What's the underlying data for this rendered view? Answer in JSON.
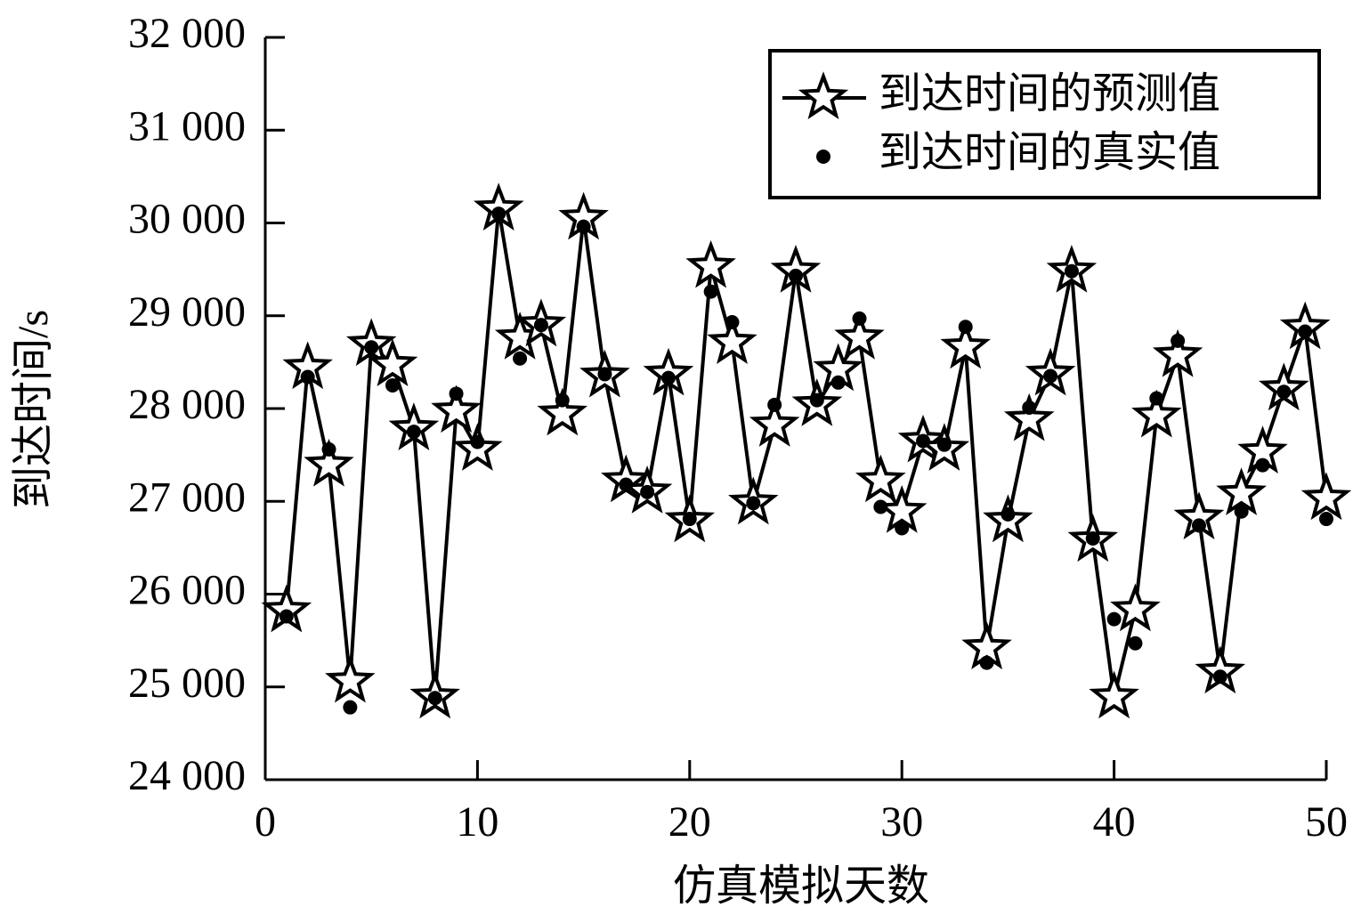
{
  "chart_data": {
    "type": "line",
    "x_label": "仿真模拟天数",
    "y_label": "到达时间/s",
    "x": [
      1,
      2,
      3,
      4,
      5,
      6,
      7,
      8,
      9,
      10,
      11,
      12,
      13,
      14,
      15,
      16,
      17,
      18,
      19,
      20,
      21,
      22,
      23,
      24,
      25,
      26,
      27,
      28,
      29,
      30,
      31,
      32,
      33,
      34,
      35,
      36,
      37,
      38,
      39,
      40,
      41,
      42,
      43,
      44,
      45,
      46,
      47,
      48,
      49,
      50
    ],
    "series": [
      {
        "name": "到达时间的预测值",
        "color": "#000000",
        "marker": "star",
        "line": true,
        "values": [
          25820,
          28440,
          27390,
          25060,
          28690,
          28470,
          27780,
          24890,
          27970,
          27560,
          30150,
          28760,
          28900,
          27940,
          30050,
          28350,
          27220,
          27100,
          28370,
          26790,
          29530,
          28710,
          26980,
          27820,
          29480,
          28040,
          28420,
          28760,
          27220,
          26890,
          27650,
          27560,
          28660,
          25420,
          26790,
          27880,
          28370,
          29480,
          26580,
          24890,
          25830,
          27920,
          28570,
          26820,
          25160,
          27080,
          27530,
          28210,
          28870,
          27030
        ]
      },
      {
        "name": "到达时间的真实值",
        "color": "#000000",
        "marker": "dot",
        "line": false,
        "values": [
          25760,
          28340,
          27560,
          24780,
          28660,
          28250,
          27750,
          24880,
          28160,
          27640,
          30100,
          28540,
          28900,
          28090,
          29960,
          28370,
          27180,
          27100,
          28330,
          26810,
          29260,
          28930,
          26980,
          28040,
          29430,
          28090,
          28280,
          28970,
          26940,
          26710,
          27650,
          27610,
          28880,
          25260,
          26860,
          28010,
          28350,
          29480,
          26600,
          25730,
          25470,
          28110,
          28730,
          26740,
          25110,
          26890,
          27390,
          28180,
          28830,
          26810
        ]
      }
    ],
    "xlim": [
      0,
      50
    ],
    "xticks": [
      0,
      10,
      20,
      30,
      40,
      50
    ],
    "ylim": [
      24000,
      32000
    ],
    "yticks": [
      {
        "value": 24000,
        "label": "24 000"
      },
      {
        "value": 25000,
        "label": "25 000"
      },
      {
        "value": 26000,
        "label": "26 000"
      },
      {
        "value": 27000,
        "label": "27 000"
      },
      {
        "value": 28000,
        "label": "28 000"
      },
      {
        "value": 29000,
        "label": "29 000"
      },
      {
        "value": 30000,
        "label": "30 000"
      },
      {
        "value": 31000,
        "label": "31 000"
      },
      {
        "value": 32000,
        "label": "32 000"
      }
    ],
    "legend": "upper right",
    "grid": false
  }
}
